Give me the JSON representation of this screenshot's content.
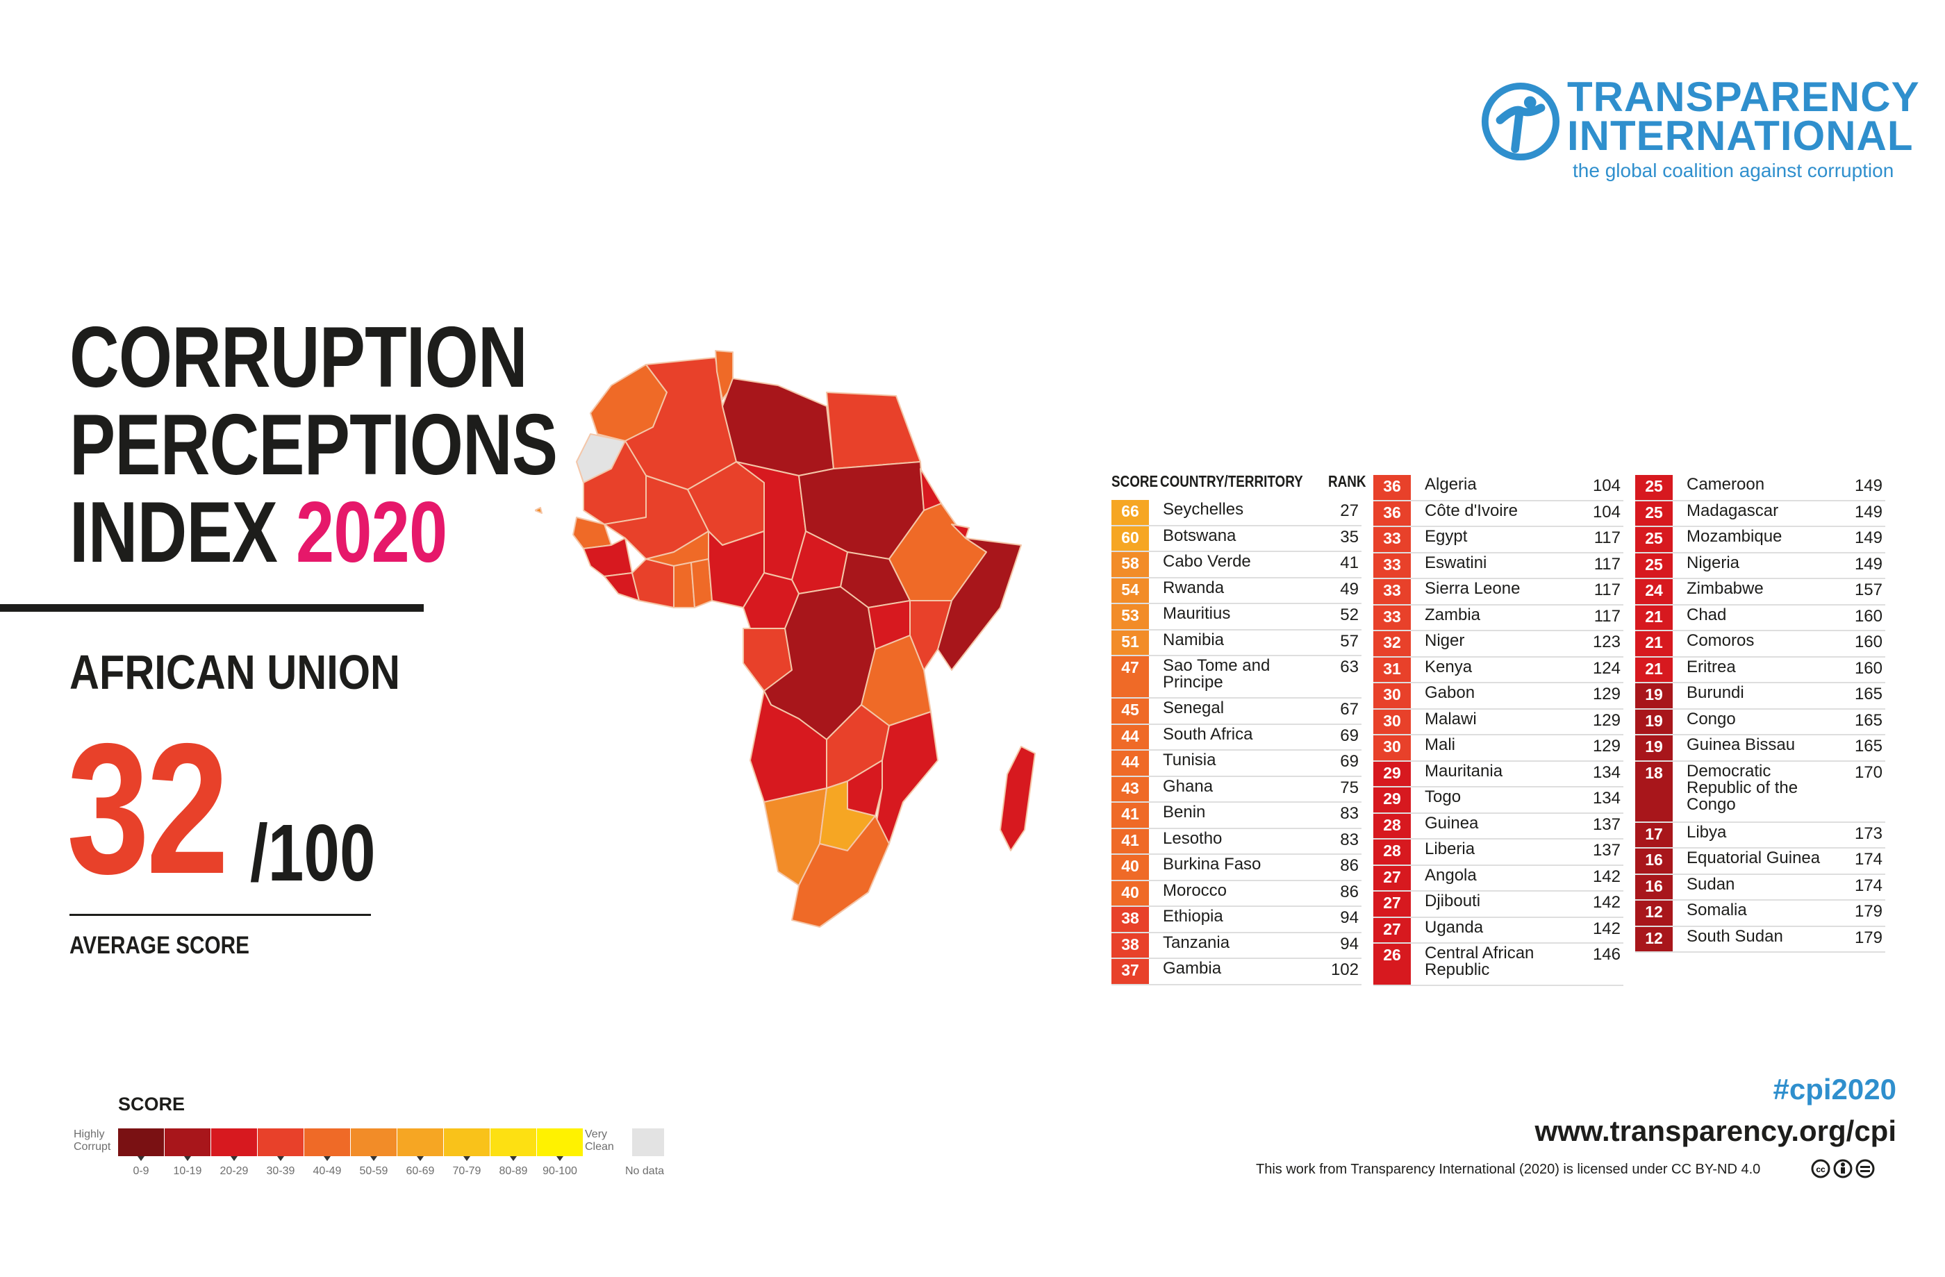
{
  "logo": {
    "name_line1": "TRANSPARENCY",
    "name_line2": "INTERNATIONAL",
    "tagline": "the global coalition against corruption"
  },
  "title": {
    "line1": "CORRUPTION",
    "line2": "PERCEPTIONS",
    "line3_prefix": "INDEX",
    "year": "2020"
  },
  "region": "AFRICAN UNION",
  "average": {
    "score": "32",
    "denominator": "/100",
    "label": "AVERAGE SCORE"
  },
  "table": {
    "headers": {
      "score": "SCORE",
      "country": "COUNTRY/TERRITORY",
      "rank": "RANK"
    },
    "columns": [
      [
        {
          "score": "66",
          "country": "Seychelles",
          "rank": "27"
        },
        {
          "score": "60",
          "country": "Botswana",
          "rank": "35"
        },
        {
          "score": "58",
          "country": "Cabo Verde",
          "rank": "41"
        },
        {
          "score": "54",
          "country": "Rwanda",
          "rank": "49"
        },
        {
          "score": "53",
          "country": "Mauritius",
          "rank": "52"
        },
        {
          "score": "51",
          "country": "Namibia",
          "rank": "57"
        },
        {
          "score": "47",
          "country": "Sao Tome and Principe",
          "rank": "63"
        },
        {
          "score": "45",
          "country": "Senegal",
          "rank": "67"
        },
        {
          "score": "44",
          "country": "South Africa",
          "rank": "69"
        },
        {
          "score": "44",
          "country": "Tunisia",
          "rank": "69"
        },
        {
          "score": "43",
          "country": "Ghana",
          "rank": "75"
        },
        {
          "score": "41",
          "country": "Benin",
          "rank": "83"
        },
        {
          "score": "41",
          "country": "Lesotho",
          "rank": "83"
        },
        {
          "score": "40",
          "country": "Burkina Faso",
          "rank": "86"
        },
        {
          "score": "40",
          "country": "Morocco",
          "rank": "86"
        },
        {
          "score": "38",
          "country": "Ethiopia",
          "rank": "94"
        },
        {
          "score": "38",
          "country": "Tanzania",
          "rank": "94"
        },
        {
          "score": "37",
          "country": "Gambia",
          "rank": "102"
        }
      ],
      [
        {
          "score": "36",
          "country": "Algeria",
          "rank": "104"
        },
        {
          "score": "36",
          "country": "Côte d'Ivoire",
          "rank": "104"
        },
        {
          "score": "33",
          "country": "Egypt",
          "rank": "117"
        },
        {
          "score": "33",
          "country": "Eswatini",
          "rank": "117"
        },
        {
          "score": "33",
          "country": "Sierra Leone",
          "rank": "117"
        },
        {
          "score": "33",
          "country": "Zambia",
          "rank": "117"
        },
        {
          "score": "32",
          "country": "Niger",
          "rank": "123"
        },
        {
          "score": "31",
          "country": "Kenya",
          "rank": "124"
        },
        {
          "score": "30",
          "country": "Gabon",
          "rank": "129"
        },
        {
          "score": "30",
          "country": "Malawi",
          "rank": "129"
        },
        {
          "score": "30",
          "country": "Mali",
          "rank": "129"
        },
        {
          "score": "29",
          "country": "Mauritania",
          "rank": "134"
        },
        {
          "score": "29",
          "country": "Togo",
          "rank": "134"
        },
        {
          "score": "28",
          "country": "Guinea",
          "rank": "137"
        },
        {
          "score": "28",
          "country": "Liberia",
          "rank": "137"
        },
        {
          "score": "27",
          "country": "Angola",
          "rank": "142"
        },
        {
          "score": "27",
          "country": "Djibouti",
          "rank": "142"
        },
        {
          "score": "27",
          "country": "Uganda",
          "rank": "142"
        },
        {
          "score": "26",
          "country": "Central African Republic",
          "rank": "146"
        }
      ],
      [
        {
          "score": "25",
          "country": "Cameroon",
          "rank": "149"
        },
        {
          "score": "25",
          "country": "Madagascar",
          "rank": "149"
        },
        {
          "score": "25",
          "country": "Mozambique",
          "rank": "149"
        },
        {
          "score": "25",
          "country": "Nigeria",
          "rank": "149"
        },
        {
          "score": "24",
          "country": "Zimbabwe",
          "rank": "157"
        },
        {
          "score": "21",
          "country": "Chad",
          "rank": "160"
        },
        {
          "score": "21",
          "country": "Comoros",
          "rank": "160"
        },
        {
          "score": "21",
          "country": "Eritrea",
          "rank": "160"
        },
        {
          "score": "19",
          "country": "Burundi",
          "rank": "165"
        },
        {
          "score": "19",
          "country": "Congo",
          "rank": "165"
        },
        {
          "score": "19",
          "country": "Guinea Bissau",
          "rank": "165"
        },
        {
          "score": "18",
          "country": "Democratic Republic of the Congo",
          "rank": "170"
        },
        {
          "score": "17",
          "country": "Libya",
          "rank": "173"
        },
        {
          "score": "16",
          "country": "Equatorial Guinea",
          "rank": "174"
        },
        {
          "score": "16",
          "country": "Sudan",
          "rank": "174"
        },
        {
          "score": "12",
          "country": "Somalia",
          "rank": "179"
        },
        {
          "score": "12",
          "country": "South Sudan",
          "rank": "179"
        }
      ]
    ]
  },
  "legend": {
    "title": "SCORE",
    "low_label": "Highly Corrupt",
    "high_label": "Very Clean",
    "no_data": "No data",
    "bins": [
      {
        "label": "0-9",
        "color": "#7a1113"
      },
      {
        "label": "10-19",
        "color": "#a8161b"
      },
      {
        "label": "20-29",
        "color": "#d7191f"
      },
      {
        "label": "30-39",
        "color": "#e8412a"
      },
      {
        "label": "40-49",
        "color": "#ef6a27"
      },
      {
        "label": "50-59",
        "color": "#f28c28"
      },
      {
        "label": "60-69",
        "color": "#f6a623"
      },
      {
        "label": "70-79",
        "color": "#f9c21a"
      },
      {
        "label": "80-89",
        "color": "#fde012"
      },
      {
        "label": "90-100",
        "color": "#fff200"
      }
    ]
  },
  "hashtag": "#cpi2020",
  "url": "www.transparency.org/cpi",
  "license": "This work from Transparency International (2020) is licensed under CC BY-ND 4.0",
  "colors": {
    "brand_blue": "#2f8fcd",
    "accent_pink": "#e6186a",
    "score_red": "#e8412a"
  }
}
